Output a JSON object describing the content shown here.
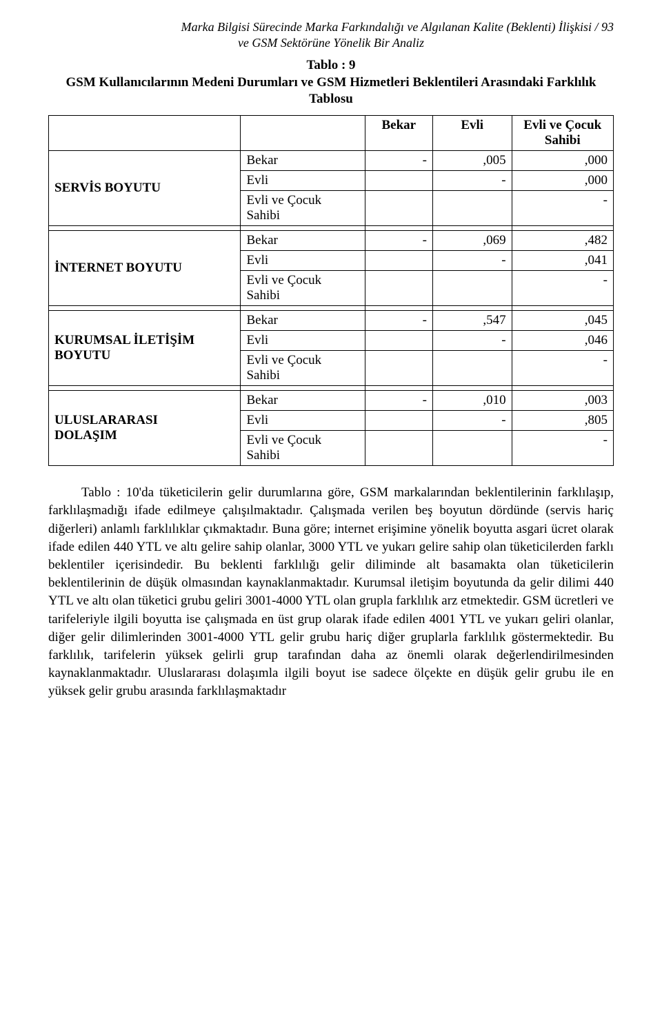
{
  "header": {
    "line1": "Marka Bilgisi Sürecinde Marka Farkındalığı ve Algılanan Kalite (Beklenti) İlişkisi  /  93",
    "line2": "ve GSM Sektörüne Yönelik Bir Analiz"
  },
  "table": {
    "title_line1": "Tablo : 9",
    "title_line2": "GSM Kullanıcılarının Medeni Durumları ve GSM Hizmetleri Beklentileri Arasındaki Farklılık Tablosu",
    "col_headers": {
      "c1": "Bekar",
      "c2": "Evli",
      "c3_l1": "Evli ve Çocuk",
      "c3_l2": "Sahibi"
    },
    "sub_labels": {
      "bekar": "Bekar",
      "evli": "Evli",
      "evli_cocuk_l1": "Evli ve Çocuk",
      "evli_cocuk_l2": "Sahibi"
    },
    "groups": [
      {
        "name": "servis-boyutu",
        "label": "SERVİS BOYUTU",
        "rows": {
          "bekar": {
            "c1": "-",
            "c2": ",005",
            "c3": ",000"
          },
          "evli": {
            "c1": "",
            "c2": "-",
            "c3": ",000"
          },
          "evli_cocuk": {
            "c1": "",
            "c2": "",
            "c3": "-"
          }
        }
      },
      {
        "name": "internet-boyutu",
        "label": "İNTERNET BOYUTU",
        "rows": {
          "bekar": {
            "c1": "-",
            "c2": ",069",
            "c3": ",482"
          },
          "evli": {
            "c1": "",
            "c2": "-",
            "c3": ",041"
          },
          "evli_cocuk": {
            "c1": "",
            "c2": "",
            "c3": "-"
          }
        }
      },
      {
        "name": "kurumsal-iletisim-boyutu",
        "label_l1": "KURUMSAL İLETİŞİM",
        "label_l2": "BOYUTU",
        "rows": {
          "bekar": {
            "c1": "-",
            "c2": ",547",
            "c3": ",045"
          },
          "evli": {
            "c1": "",
            "c2": "-",
            "c3": ",046"
          },
          "evli_cocuk": {
            "c1": "",
            "c2": "",
            "c3": "-"
          }
        }
      },
      {
        "name": "uluslararasi-dolasim",
        "label_l1": "ULUSLARARASI",
        "label_l2": "DOLAŞIM",
        "rows": {
          "bekar": {
            "c1": "-",
            "c2": ",010",
            "c3": ",003"
          },
          "evli": {
            "c1": "",
            "c2": "-",
            "c3": ",805"
          },
          "evli_cocuk": {
            "c1": "",
            "c2": "",
            "c3": "-"
          }
        }
      }
    ]
  },
  "paragraph": "Tablo : 10'da tüketicilerin gelir durumlarına göre, GSM markalarından beklentilerinin farklılaşıp, farklılaşmadığı ifade edilmeye çalışılmaktadır. Çalışmada verilen beş boyutun dördünde (servis hariç diğerleri) anlamlı farklılıklar çıkmaktadır. Buna göre; internet erişimine yönelik boyutta asgari ücret olarak ifade edilen 440 YTL ve altı gelire sahip olanlar, 3000 YTL ve yukarı gelire sahip olan tüketicilerden farklı beklentiler içerisindedir. Bu beklenti farklılığı gelir diliminde alt basamakta olan tüketicilerin beklentilerinin de düşük olmasından kaynaklanmaktadır. Kurumsal iletişim boyutunda da gelir dilimi 440 YTL ve altı olan tüketici grubu geliri 3001-4000 YTL olan grupla farklılık arz etmektedir. GSM ücretleri ve tarifeleriyle ilgili boyutta ise çalışmada en üst grup olarak ifade edilen 4001 YTL ve yukarı geliri olanlar, diğer gelir dilimlerinden 3001-4000 YTL gelir grubu hariç diğer gruplarla farklılık göstermektedir. Bu farklılık, tarifelerin yüksek gelirli grup tarafından daha az önemli olarak değerlendirilmesinden kaynaklanmaktadır. Uluslararası dolaşımla ilgili boyut ise sadece ölçekte en düşük gelir grubu ile en yüksek gelir grubu arasında farklılaşmaktadır"
}
